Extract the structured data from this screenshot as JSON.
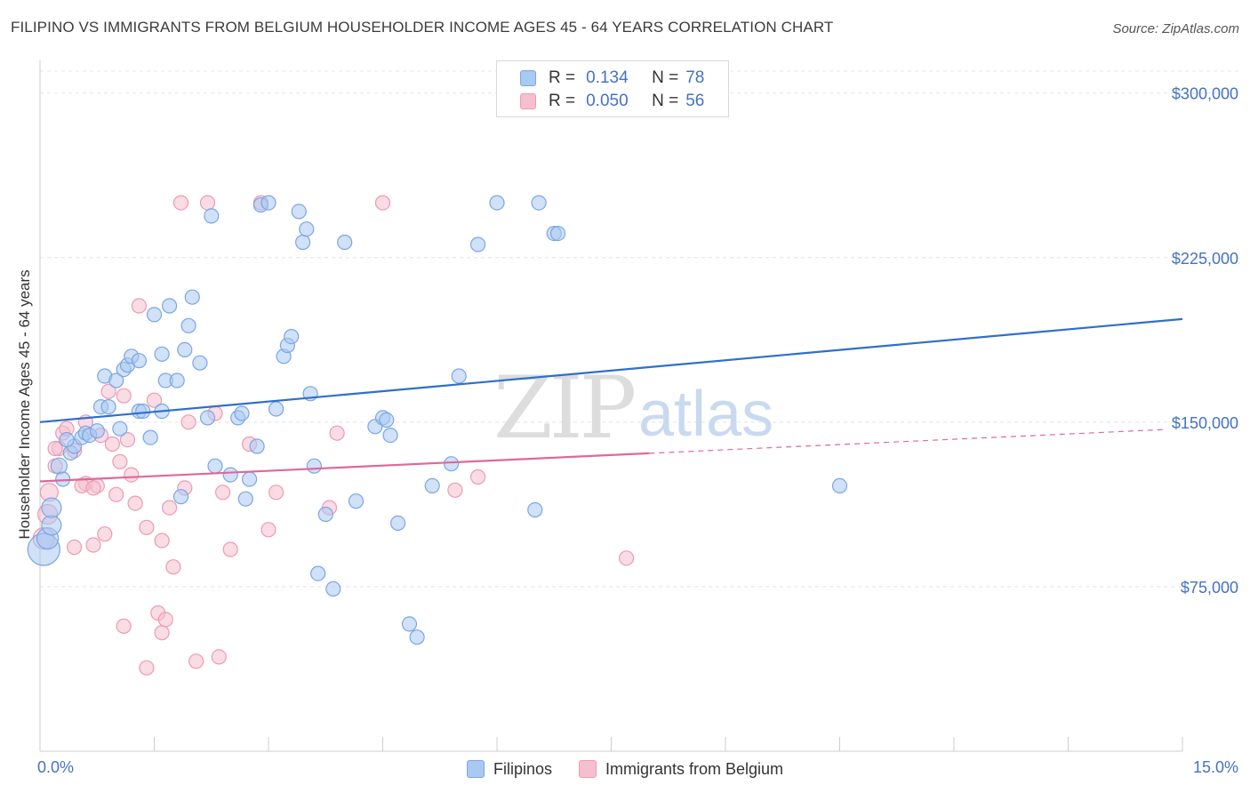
{
  "header": {
    "title": "FILIPINO VS IMMIGRANTS FROM BELGIUM HOUSEHOLDER INCOME AGES 45 - 64 YEARS CORRELATION CHART",
    "source": "Source: ZipAtlas.com"
  },
  "stats": [
    {
      "r_label": "R =",
      "r_value": "0.134",
      "n_label": "N =",
      "n_value": "78"
    },
    {
      "r_label": "R =",
      "r_value": "0.050",
      "n_label": "N =",
      "n_value": "56"
    }
  ],
  "colors": {
    "blue_fill": "#a9c8f2",
    "blue_stroke": "#7aa6e3",
    "blue_line": "#2f6fcc",
    "pink_fill": "#f6bfd0",
    "pink_stroke": "#ec9ab3",
    "pink_line": "#e0679a",
    "axis_label": "#4472c4",
    "grid": "#e4e4e4"
  },
  "watermark": {
    "zip": "ZIP",
    "atlas": "atlas"
  },
  "chart_data": {
    "type": "scatter",
    "title": "FILIPINO VS IMMIGRANTS FROM BELGIUM HOUSEHOLDER INCOME AGES 45 - 64 YEARS CORRELATION CHART",
    "xlabel": "",
    "ylabel": "Householder Income Ages 45 - 64 years",
    "xlim": [
      0,
      15
    ],
    "ylim": [
      0,
      310000
    ],
    "x_tick_labels": [
      "0.0%",
      "15.0%"
    ],
    "y_ticks": [
      75000,
      150000,
      225000,
      300000
    ],
    "y_tick_labels": [
      "$75,000",
      "$150,000",
      "$225,000",
      "$300,000"
    ],
    "series": [
      {
        "name": "Filipinos",
        "color": "#a9c8f2",
        "trend": {
          "x": [
            0,
            15
          ],
          "y": [
            150000,
            197000
          ],
          "dashed_from": null
        },
        "points": [
          [
            0.05,
            92000,
            18
          ],
          [
            0.1,
            97000,
            12
          ],
          [
            0.15,
            103000,
            11
          ],
          [
            0.15,
            111000,
            11
          ],
          [
            0.25,
            130000,
            9
          ],
          [
            0.3,
            124000,
            8
          ],
          [
            0.4,
            136000,
            8
          ],
          [
            0.45,
            139000,
            8
          ],
          [
            0.55,
            143000,
            8
          ],
          [
            0.6,
            145000,
            8
          ],
          [
            0.65,
            144000,
            8
          ],
          [
            0.75,
            146000,
            8
          ],
          [
            0.8,
            157000,
            8
          ],
          [
            0.9,
            157000,
            8
          ],
          [
            0.85,
            171000,
            8
          ],
          [
            1.0,
            169000,
            8
          ],
          [
            1.05,
            147000,
            8
          ],
          [
            1.1,
            174000,
            8
          ],
          [
            1.15,
            176000,
            8
          ],
          [
            1.2,
            180000,
            8
          ],
          [
            1.3,
            178000,
            8
          ],
          [
            1.3,
            155000,
            8
          ],
          [
            1.35,
            155000,
            8
          ],
          [
            1.45,
            143000,
            8
          ],
          [
            1.5,
            199000,
            8
          ],
          [
            1.6,
            155000,
            8
          ],
          [
            1.6,
            181000,
            8
          ],
          [
            1.65,
            169000,
            8
          ],
          [
            1.8,
            169000,
            8
          ],
          [
            1.7,
            203000,
            8
          ],
          [
            1.9,
            183000,
            8
          ],
          [
            1.95,
            194000,
            8
          ],
          [
            2.0,
            207000,
            8
          ],
          [
            2.1,
            177000,
            8
          ],
          [
            1.85,
            116000,
            8
          ],
          [
            2.2,
            152000,
            8
          ],
          [
            2.25,
            244000,
            8
          ],
          [
            2.3,
            130000,
            8
          ],
          [
            2.5,
            126000,
            8
          ],
          [
            2.6,
            152000,
            8
          ],
          [
            2.65,
            154000,
            8
          ],
          [
            2.7,
            115000,
            8
          ],
          [
            2.75,
            124000,
            8
          ],
          [
            2.85,
            139000,
            8
          ],
          [
            2.9,
            249000,
            8
          ],
          [
            3.0,
            250000,
            8
          ],
          [
            3.1,
            156000,
            8
          ],
          [
            3.2,
            180000,
            8
          ],
          [
            3.25,
            185000,
            8
          ],
          [
            3.3,
            189000,
            8
          ],
          [
            3.4,
            246000,
            8
          ],
          [
            3.45,
            232000,
            8
          ],
          [
            3.5,
            238000,
            8
          ],
          [
            3.55,
            163000,
            8
          ],
          [
            3.6,
            130000,
            8
          ],
          [
            3.65,
            81000,
            8
          ],
          [
            3.75,
            108000,
            8
          ],
          [
            3.85,
            74000,
            8
          ],
          [
            4.0,
            232000,
            8
          ],
          [
            4.15,
            114000,
            8
          ],
          [
            4.4,
            148000,
            8
          ],
          [
            4.5,
            152000,
            8
          ],
          [
            4.55,
            151000,
            8
          ],
          [
            4.6,
            144000,
            8
          ],
          [
            4.7,
            104000,
            8
          ],
          [
            4.85,
            58000,
            8
          ],
          [
            4.95,
            52000,
            8
          ],
          [
            5.15,
            121000,
            8
          ],
          [
            5.4,
            131000,
            8
          ],
          [
            5.5,
            171000,
            8
          ],
          [
            5.75,
            231000,
            8
          ],
          [
            6.0,
            250000,
            8
          ],
          [
            6.5,
            110000,
            8
          ],
          [
            6.55,
            250000,
            8
          ],
          [
            6.75,
            236000,
            8
          ],
          [
            6.8,
            236000,
            8
          ],
          [
            10.5,
            121000,
            8
          ],
          [
            0.35,
            142000,
            8
          ]
        ]
      },
      {
        "name": "Immigrants from Belgium",
        "color": "#f6bfd0",
        "trend": {
          "x": [
            0,
            15
          ],
          "y": [
            123000,
            147000
          ],
          "dashed_from": 8.0
        },
        "points": [
          [
            0.05,
            97000,
            12
          ],
          [
            0.1,
            108000,
            11
          ],
          [
            0.12,
            118000,
            10
          ],
          [
            0.2,
            130000,
            8
          ],
          [
            0.25,
            138000,
            8
          ],
          [
            0.3,
            145000,
            8
          ],
          [
            0.35,
            147000,
            8
          ],
          [
            0.45,
            137000,
            8
          ],
          [
            0.45,
            93000,
            8
          ],
          [
            0.6,
            122000,
            8
          ],
          [
            0.6,
            150000,
            8
          ],
          [
            0.7,
            94000,
            8
          ],
          [
            0.75,
            121000,
            8
          ],
          [
            0.8,
            144000,
            8
          ],
          [
            0.85,
            99000,
            8
          ],
          [
            0.9,
            164000,
            8
          ],
          [
            0.95,
            140000,
            8
          ],
          [
            1.0,
            117000,
            8
          ],
          [
            1.05,
            132000,
            8
          ],
          [
            1.1,
            162000,
            8
          ],
          [
            1.15,
            142000,
            8
          ],
          [
            1.1,
            57000,
            8
          ],
          [
            1.2,
            126000,
            8
          ],
          [
            1.25,
            113000,
            8
          ],
          [
            1.3,
            203000,
            8
          ],
          [
            1.4,
            102000,
            8
          ],
          [
            1.4,
            38000,
            8
          ],
          [
            1.5,
            160000,
            8
          ],
          [
            1.6,
            96000,
            8
          ],
          [
            1.55,
            63000,
            8
          ],
          [
            1.6,
            54000,
            8
          ],
          [
            1.65,
            60000,
            8
          ],
          [
            1.7,
            111000,
            8
          ],
          [
            1.75,
            84000,
            8
          ],
          [
            1.85,
            250000,
            8
          ],
          [
            1.9,
            120000,
            8
          ],
          [
            1.95,
            150000,
            8
          ],
          [
            2.05,
            41000,
            8
          ],
          [
            2.2,
            250000,
            8
          ],
          [
            2.3,
            154000,
            8
          ],
          [
            2.35,
            43000,
            8
          ],
          [
            2.4,
            118000,
            8
          ],
          [
            2.5,
            92000,
            8
          ],
          [
            2.75,
            140000,
            8
          ],
          [
            2.9,
            250000,
            8
          ],
          [
            3.0,
            101000,
            8
          ],
          [
            3.1,
            118000,
            8
          ],
          [
            3.8,
            111000,
            8
          ],
          [
            3.9,
            145000,
            8
          ],
          [
            4.5,
            250000,
            8
          ],
          [
            5.45,
            119000,
            8
          ],
          [
            5.75,
            125000,
            8
          ],
          [
            7.7,
            88000,
            8
          ],
          [
            0.2,
            138000,
            8
          ],
          [
            0.55,
            121000,
            8
          ],
          [
            0.7,
            120000,
            8
          ]
        ]
      }
    ]
  }
}
